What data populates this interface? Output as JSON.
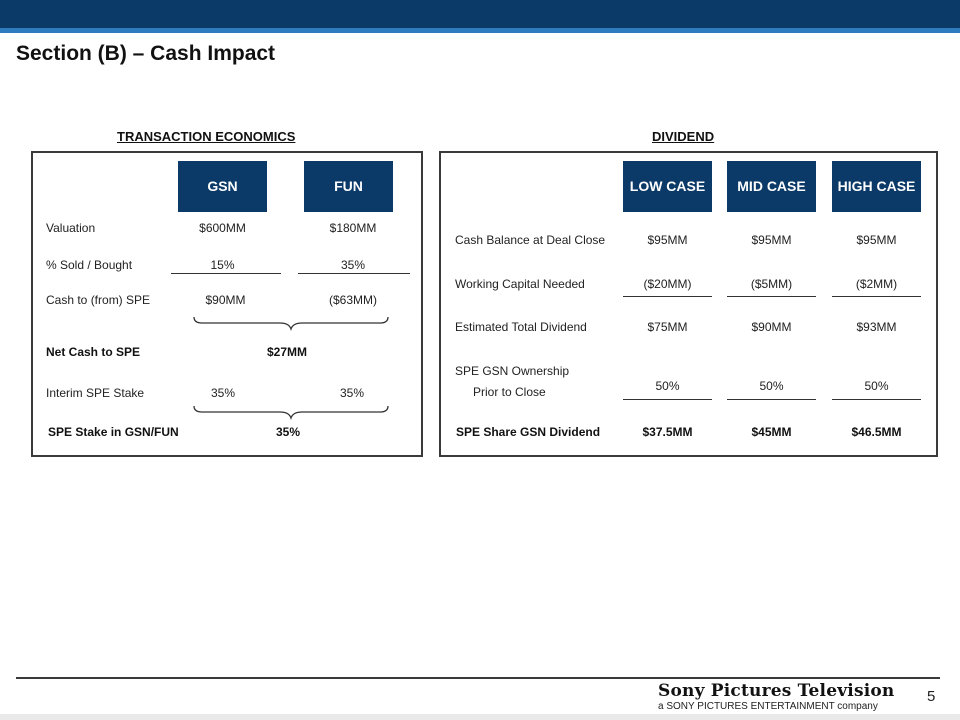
{
  "title": "Section (B) – Cash Impact",
  "transaction": {
    "heading": "TRANSACTION ECONOMICS",
    "col1": "GSN",
    "col2": "FUN",
    "rows": [
      {
        "label": "Valuation",
        "v1": "$600MM",
        "v2": "$180MM"
      },
      {
        "label": "% Sold / Bought",
        "v1": "15%",
        "v2": "35%"
      },
      {
        "label": "Cash to (from) SPE",
        "v1": "$90MM",
        "v2": "($63MM)"
      }
    ],
    "net_label": "Net Cash to SPE",
    "net_value": "$27MM",
    "interim_label": "Interim SPE Stake",
    "interim_v1": "35%",
    "interim_v2": "35%",
    "stake_label": "SPE Stake in GSN/FUN",
    "stake_value": "35%"
  },
  "dividend": {
    "heading": "DIVIDEND",
    "cases": [
      "LOW CASE",
      "MID CASE",
      "HIGH CASE"
    ],
    "rows": [
      {
        "label": "Cash Balance at Deal Close",
        "values": [
          "$95MM",
          "$95MM",
          "$95MM"
        ]
      },
      {
        "label": "Working Capital Needed",
        "values": [
          "($20MM)",
          "($5MM)",
          "($2MM)"
        ]
      },
      {
        "label": "Estimated Total Dividend",
        "values": [
          "$75MM",
          "$90MM",
          "$93MM"
        ]
      }
    ],
    "ownership_label_1": "SPE GSN Ownership",
    "ownership_label_2": "Prior to Close",
    "ownership_values": [
      "50%",
      "50%",
      "50%"
    ],
    "share_label": "SPE Share GSN Dividend",
    "share_values": [
      "$37.5MM",
      "$45MM",
      "$46.5MM"
    ]
  },
  "footer": {
    "logo_main": "Sony Pictures Television",
    "logo_sub": "a SONY PICTURES ENTERTAINMENT company",
    "page_number": "5"
  }
}
